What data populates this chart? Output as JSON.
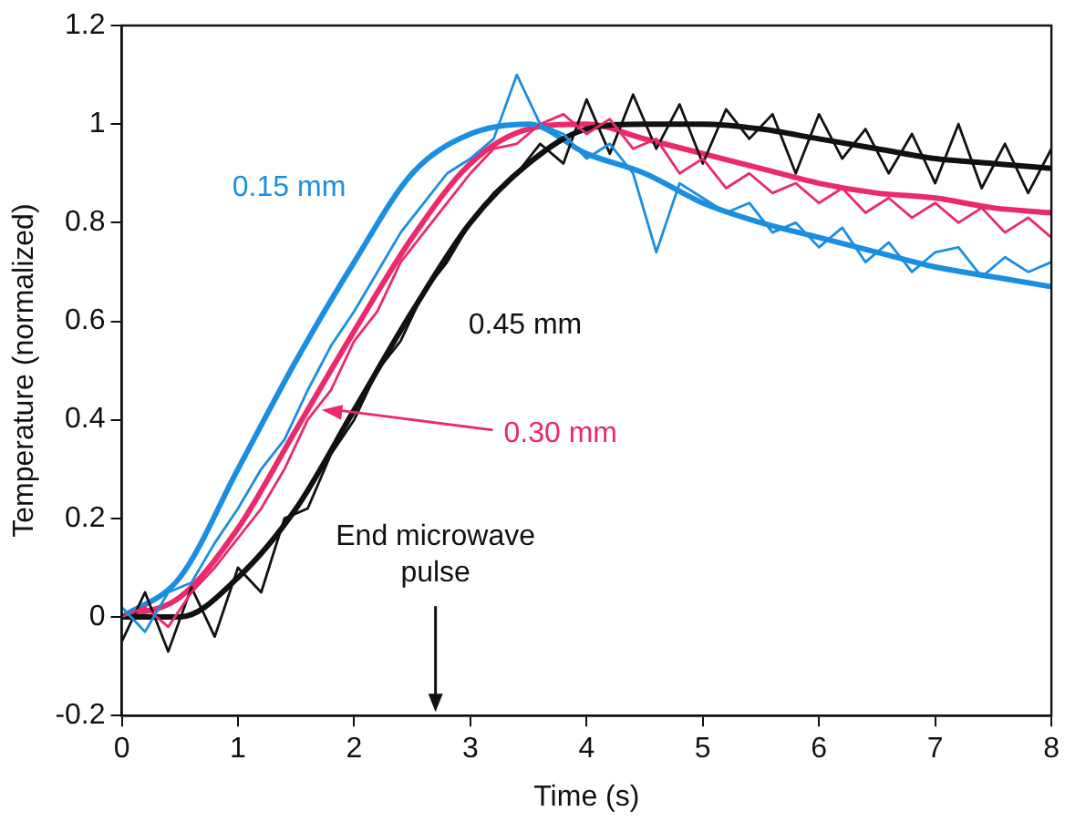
{
  "chart_data": {
    "type": "line",
    "xlabel": "Time (s)",
    "ylabel": "Temperature (normalized)",
    "xlim": [
      0,
      8
    ],
    "xticks": [
      0,
      1,
      2,
      3,
      4,
      5,
      6,
      7,
      8
    ],
    "ylim": [
      -0.2,
      1.2
    ],
    "yticks": [
      -0.2,
      0,
      0.2,
      0.4,
      0.6,
      0.8,
      1.0,
      1.2
    ],
    "grid": false,
    "legend": false,
    "marker": "none",
    "line_style": "solid",
    "series": [
      {
        "color": "#1b8ee0",
        "x": [
          0,
          0.2,
          0.4,
          0.6,
          0.8,
          1.0,
          1.2,
          1.4,
          1.6,
          1.8,
          2.0,
          2.2,
          2.4,
          2.6,
          2.8,
          3.0,
          3.2,
          3.4,
          3.6,
          3.8,
          4.0,
          4.2,
          4.4,
          4.6,
          4.8,
          5.0,
          5.2,
          5.4,
          5.6,
          5.8,
          6.0,
          6.2,
          6.4,
          6.6,
          6.8,
          7.0,
          7.2,
          7.4,
          7.6,
          7.8,
          8.0
        ],
        "values": [
          0.02,
          -0.03,
          0.05,
          0.07,
          0.15,
          0.22,
          0.3,
          0.36,
          0.46,
          0.55,
          0.62,
          0.7,
          0.78,
          0.84,
          0.9,
          0.93,
          0.97,
          1.1,
          1.0,
          0.98,
          0.93,
          0.96,
          0.9,
          0.74,
          0.88,
          0.85,
          0.82,
          0.84,
          0.78,
          0.8,
          0.75,
          0.79,
          0.72,
          0.76,
          0.7,
          0.74,
          0.75,
          0.69,
          0.73,
          0.7,
          0.72
        ]
      },
      {
        "color": "#ea2a6a",
        "x": [
          0,
          0.2,
          0.4,
          0.6,
          0.8,
          1.0,
          1.2,
          1.4,
          1.6,
          1.8,
          2.0,
          2.2,
          2.4,
          2.6,
          2.8,
          3.0,
          3.2,
          3.4,
          3.6,
          3.8,
          4.0,
          4.2,
          4.4,
          4.6,
          4.8,
          5.0,
          5.2,
          5.4,
          5.6,
          5.8,
          6.0,
          6.2,
          6.4,
          6.6,
          6.8,
          7.0,
          7.2,
          7.4,
          7.6,
          7.8,
          8.0
        ],
        "values": [
          0.0,
          0.02,
          -0.02,
          0.05,
          0.1,
          0.16,
          0.22,
          0.3,
          0.4,
          0.46,
          0.56,
          0.62,
          0.72,
          0.78,
          0.84,
          0.9,
          0.95,
          0.96,
          1.0,
          1.02,
          0.98,
          1.01,
          0.95,
          0.97,
          0.9,
          0.93,
          0.87,
          0.9,
          0.86,
          0.88,
          0.84,
          0.87,
          0.82,
          0.85,
          0.81,
          0.84,
          0.8,
          0.83,
          0.78,
          0.81,
          0.77
        ]
      },
      {
        "color": "#111111",
        "x": [
          0,
          0.2,
          0.4,
          0.6,
          0.8,
          1.0,
          1.2,
          1.4,
          1.6,
          1.8,
          2.0,
          2.2,
          2.4,
          2.6,
          2.8,
          3.0,
          3.2,
          3.4,
          3.6,
          3.8,
          4.0,
          4.2,
          4.4,
          4.6,
          4.8,
          5.0,
          5.2,
          5.4,
          5.6,
          5.8,
          6.0,
          6.2,
          6.4,
          6.6,
          6.8,
          7.0,
          7.2,
          7.4,
          7.6,
          7.8,
          8.0
        ],
        "values": [
          -0.05,
          0.05,
          -0.07,
          0.06,
          -0.04,
          0.1,
          0.05,
          0.2,
          0.22,
          0.33,
          0.4,
          0.5,
          0.56,
          0.66,
          0.72,
          0.8,
          0.86,
          0.9,
          0.96,
          0.92,
          1.05,
          0.94,
          1.06,
          0.95,
          1.04,
          0.92,
          1.03,
          0.97,
          1.02,
          0.9,
          1.02,
          0.93,
          0.99,
          0.9,
          0.98,
          0.88,
          1.0,
          0.87,
          0.96,
          0.86,
          0.95
        ]
      },
      {
        "color": "#111111",
        "x": [
          0,
          0.5,
          1,
          1.5,
          2,
          2.5,
          3,
          3.5,
          4,
          4.5,
          5,
          5.5,
          6,
          6.5,
          7,
          7.5,
          8
        ],
        "values": [
          0.0,
          0.0,
          0.08,
          0.22,
          0.42,
          0.62,
          0.8,
          0.92,
          0.99,
          1.0,
          1.0,
          0.99,
          0.97,
          0.95,
          0.93,
          0.92,
          0.91
        ]
      },
      {
        "color": "#1b8ee0",
        "x": [
          0,
          0.5,
          1,
          1.5,
          2,
          2.5,
          3,
          3.5,
          4,
          4.5,
          5,
          5.5,
          6,
          6.5,
          7,
          7.5,
          8
        ],
        "values": [
          0.0,
          0.08,
          0.3,
          0.52,
          0.72,
          0.9,
          0.98,
          1.0,
          0.94,
          0.9,
          0.84,
          0.8,
          0.77,
          0.74,
          0.71,
          0.69,
          0.67
        ]
      },
      {
        "color": "#ea2a6a",
        "x": [
          0,
          0.5,
          1,
          1.5,
          2,
          2.5,
          3,
          3.5,
          4,
          4.5,
          5,
          5.5,
          6,
          6.5,
          7,
          7.5,
          8
        ],
        "values": [
          0.0,
          0.04,
          0.18,
          0.38,
          0.58,
          0.77,
          0.92,
          0.99,
          1.0,
          0.97,
          0.94,
          0.91,
          0.88,
          0.86,
          0.85,
          0.83,
          0.82
        ]
      }
    ],
    "annotations": [
      "0.15 mm",
      {
        "text": "0.30 mm",
        "x": 1.72,
        "y": 0.42
      },
      "0.45 mm",
      "End microwave pulse"
    ]
  }
}
